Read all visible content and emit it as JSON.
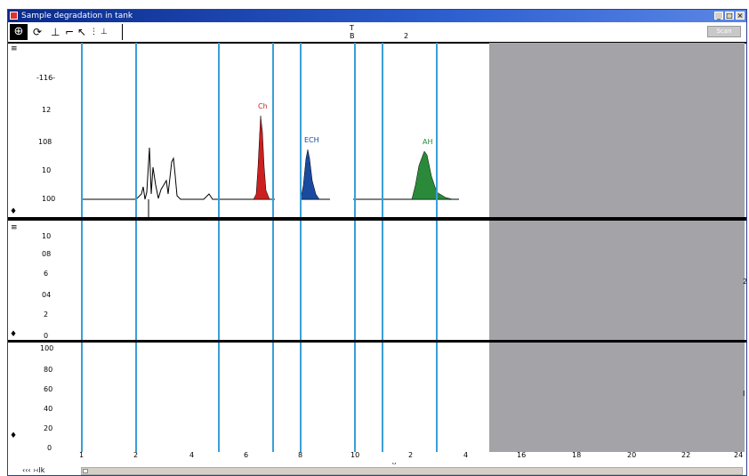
{
  "top_caption": "",
  "window": {
    "title": "Sample degradation in tank"
  },
  "toolbar": {
    "marker_T": "T",
    "marker_B": "B",
    "marker_2": "2",
    "right_button": "Scan"
  },
  "icons": {
    "zoom": "zoom-icon",
    "rotate": "rotate-icon",
    "peak": "peak-tool-icon",
    "pointer": "pointer-icon"
  },
  "colors": {
    "grid_line": "#3a9fd8",
    "gray_region": "#a3a3a8",
    "peak_red": "#cc2020",
    "peak_blue": "#1a4aa0",
    "peak_green": "#2a8a3a"
  },
  "panels": {
    "top": {
      "y_ticks": [
        "-116-",
        "12",
        "108",
        "10",
        "100"
      ],
      "left_marker": "≡",
      "bottom_marker": "♦"
    },
    "middle": {
      "y_ticks": [
        "10",
        "08",
        "6",
        "04",
        "2",
        "0"
      ],
      "left_marker": "≡",
      "bottom_marker": "♦",
      "right_label": "2"
    },
    "bottom": {
      "y_ticks": [
        "100",
        "80",
        "60",
        "40",
        "20",
        "0"
      ],
      "bottom_marker": "♦",
      "right_label": "I"
    }
  },
  "chart_data": {
    "type": "line",
    "x": [
      2,
      3,
      4,
      5,
      6,
      7,
      8,
      9,
      10,
      11,
      12,
      13,
      14,
      15,
      16,
      17,
      18
    ],
    "peaks": [
      {
        "name": "Ch",
        "color": "#cc2020",
        "x": 6.7
      },
      {
        "name": "ECH",
        "color": "#1a4aa0",
        "x": 8.3
      },
      {
        "name": "AH",
        "color": "#2a8a3a",
        "x": 12.5
      }
    ],
    "x_tick_labels": [
      "1",
      "2",
      "4",
      "6",
      "8",
      "10",
      "2",
      "4",
      "16",
      "18",
      "20",
      "22",
      "24"
    ],
    "xlabel": "v"
  },
  "statusbar": {
    "text": "‹‹‹  ›‹lk"
  }
}
